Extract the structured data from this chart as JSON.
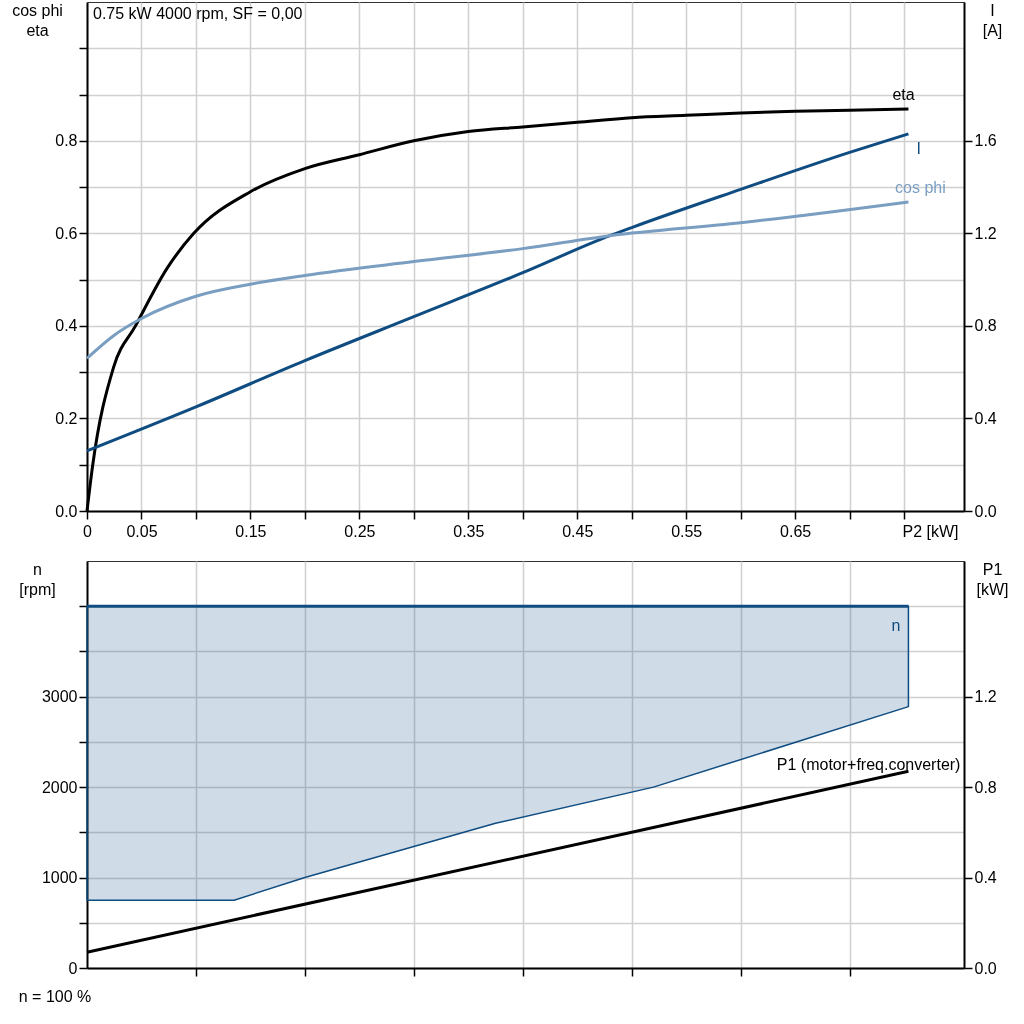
{
  "chart_data": [
    {
      "type": "line",
      "title": "0.75 kW   4000 rpm, SF = 0,00",
      "xlabel": "P2 [kW]",
      "ylabel": "cos phi\neta",
      "y2label": "I\n[A]",
      "xlim": [
        0,
        0.805
      ],
      "xticks": [
        0,
        0.05,
        {
          "value": 0.1,
          "label": null
        },
        0.15,
        {
          "value": 0.2,
          "label": null
        },
        0.25,
        {
          "value": 0.3,
          "label": null
        },
        0.35,
        {
          "value": 0.4,
          "label": null
        },
        0.45,
        {
          "value": 0.5,
          "label": null
        },
        0.55,
        {
          "value": 0.6,
          "label": null
        },
        0.65,
        {
          "value": 0.7,
          "label": null
        },
        {
          "value": 0.75,
          "label": null
        }
      ],
      "ylim": [
        0,
        1.1
      ],
      "yticks": [
        {
          "value": 0,
          "label": "0.0"
        },
        {
          "value": 0.1,
          "label": null
        },
        0.2,
        {
          "value": 0.3,
          "label": null
        },
        0.4,
        {
          "value": 0.5,
          "label": null
        },
        0.6,
        {
          "value": 0.7,
          "label": null
        },
        0.8,
        {
          "value": 0.9,
          "label": null
        },
        {
          "value": 1.0,
          "label": null
        }
      ],
      "y2lim": [
        0,
        2.2
      ],
      "y2ticks": [
        {
          "value": 0,
          "label": "0.0"
        },
        0.4,
        0.8,
        1.2,
        1.6
      ],
      "grid": true,
      "series": [
        {
          "name": "eta",
          "color": "#000000",
          "x": [
            0,
            0.005,
            0.0243,
            0.0445,
            0.0739,
            0.098,
            0.15,
            0.2,
            0.25,
            0.3,
            0.35,
            0.4,
            0.45,
            0.5,
            0.55,
            0.6,
            0.65,
            0.7,
            0.754
          ],
          "values": [
            0,
            0.095,
            0.31,
            0.4,
            0.526,
            0.6,
            0.69,
            0.74,
            0.77,
            0.8,
            0.82,
            0.83,
            0.84,
            0.85,
            0.855,
            0.86,
            0.864,
            0.866,
            0.869
          ]
        },
        {
          "name": "I",
          "color": "#0f4c81",
          "axis": "y2",
          "x": [
            0,
            0.1,
            0.2,
            0.3,
            0.4,
            0.48,
            0.5,
            0.6,
            0.7,
            0.754
          ],
          "values": [
            0.26,
            0.45,
            0.65,
            0.84,
            1.03,
            1.19,
            1.225,
            1.39,
            1.55,
            1.63
          ]
        },
        {
          "name": "cos phi",
          "color": "#7a9ec2",
          "x": [
            0,
            0.025,
            0.05,
            0.1,
            0.15,
            0.2,
            0.3,
            0.4,
            0.48,
            0.6,
            0.754
          ],
          "values": [
            0.33,
            0.38,
            0.416,
            0.464,
            0.49,
            0.509,
            0.539,
            0.567,
            0.595,
            0.623,
            0.668
          ]
        }
      ]
    },
    {
      "type": "line",
      "ylabel": "n\n[rpm]",
      "y2label": "P1\n[kW]",
      "annotations": [
        "n = 100 %"
      ],
      "tick_labels": "y",
      "xlim": [
        0,
        0.805
      ],
      "xticks": [
        {
          "value": 0.1,
          "label": null
        },
        {
          "value": 0.2,
          "label": null
        },
        {
          "value": 0.3,
          "label": null
        },
        {
          "value": 0.4,
          "label": null
        },
        {
          "value": 0.5,
          "label": null
        },
        {
          "value": 0.6,
          "label": null
        },
        {
          "value": 0.7,
          "label": null
        }
      ],
      "ylim": [
        0,
        4500
      ],
      "yticks": [
        0,
        {
          "value": 500,
          "label": null
        },
        1000,
        {
          "value": 1500,
          "label": null
        },
        2000,
        {
          "value": 2500,
          "label": null
        },
        3000,
        {
          "value": 3500,
          "label": null
        },
        {
          "value": 4000,
          "label": null
        }
      ],
      "y2lim": [
        0,
        1.8
      ],
      "y2ticks": [
        {
          "value": 0,
          "label": "0.0"
        },
        0.4,
        0.8,
        1.2
      ],
      "grid": true,
      "series": [
        {
          "name": "n",
          "color": "#0f4c81",
          "x": [
            0,
            0.135,
            0.2,
            0.375,
            0.52,
            0.754
          ],
          "values": [
            4000,
            4000,
            4000,
            4000,
            4000,
            4000
          ],
          "lower": [
            750,
            750,
            1000,
            1600,
            2000,
            2890
          ],
          "upper": [
            4000,
            4000,
            4000,
            4000,
            4000,
            4000
          ]
        },
        {
          "name": "P1 (motor+freq.converter)",
          "color": "#000000",
          "axis": "y2",
          "x": [
            0,
            0.754
          ],
          "values": [
            0.07,
            0.87
          ]
        }
      ]
    }
  ]
}
